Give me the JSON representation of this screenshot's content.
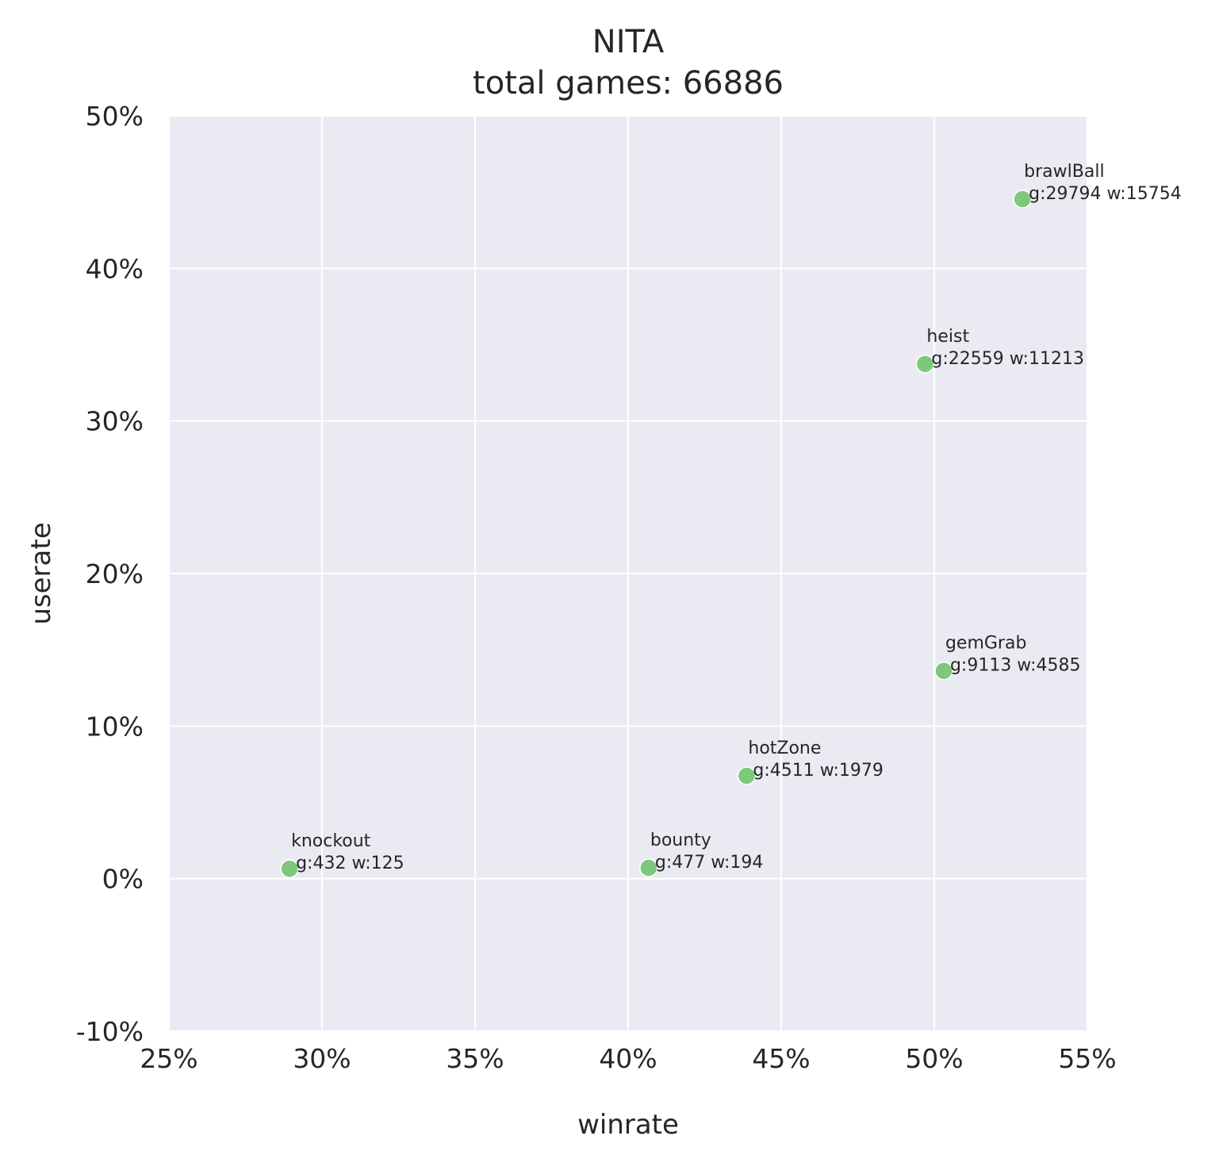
{
  "chart_data": {
    "type": "scatter",
    "title": "NITA",
    "subtitle": "total games: 66886",
    "xlabel": "winrate",
    "ylabel": "userate",
    "xlim": [
      0.25,
      0.55
    ],
    "ylim": [
      -0.1,
      0.5
    ],
    "xticks": [
      0.25,
      0.3,
      0.35,
      0.4,
      0.45,
      0.5,
      0.55
    ],
    "yticks": [
      -0.1,
      0.0,
      0.1,
      0.2,
      0.3,
      0.4,
      0.5
    ],
    "xtick_labels": [
      "25%",
      "30%",
      "35%",
      "40%",
      "45%",
      "50%",
      "55%"
    ],
    "ytick_labels": [
      "-10%",
      "0%",
      "10%",
      "20%",
      "30%",
      "40%",
      "50%"
    ],
    "grid": true,
    "colors": {
      "point": "#7dc87a",
      "background": "#eaeaf2",
      "grid": "#ffffff",
      "text": "#262626"
    },
    "points": [
      {
        "name": "brawlBall",
        "info": "g:29794 w:15754",
        "x": 0.5288,
        "y": 0.4454
      },
      {
        "name": "heist",
        "info": "g:22559 w:11213",
        "x": 0.497,
        "y": 0.3373
      },
      {
        "name": "gemGrab",
        "info": "g:9113 w:4585",
        "x": 0.5031,
        "y": 0.1362
      },
      {
        "name": "hotZone",
        "info": "g:4511 w:1979",
        "x": 0.4387,
        "y": 0.0674
      },
      {
        "name": "bounty",
        "info": "g:477 w:194",
        "x": 0.4067,
        "y": 0.0071
      },
      {
        "name": "knockout",
        "info": "g:432 w:125",
        "x": 0.2894,
        "y": 0.0065
      }
    ]
  }
}
